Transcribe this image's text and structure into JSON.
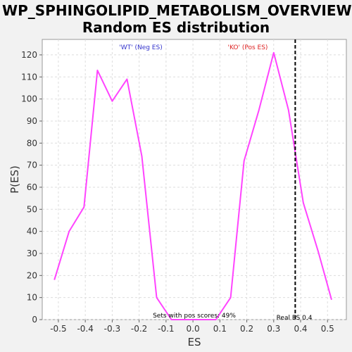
{
  "chart_data": {
    "type": "line",
    "title_line1": "WP_SPHINGOLIPID_METABOLISM_OVERVIEW:",
    "title_line2": "Random ES distribution",
    "xlabel": "ES",
    "ylabel": "P(ES)",
    "xlim": [
      -0.56,
      0.57
    ],
    "ylim": [
      0,
      127
    ],
    "xticks": [
      "-0.5",
      "-0.4",
      "-0.3",
      "-0.2",
      "-0.1",
      "0.0",
      "0.1",
      "0.2",
      "0.3",
      "0.4",
      "0.5"
    ],
    "xtick_values": [
      -0.5,
      -0.4,
      -0.3,
      -0.2,
      -0.1,
      0.0,
      0.1,
      0.2,
      0.3,
      0.4,
      0.5
    ],
    "yticks": [
      0,
      10,
      20,
      30,
      40,
      50,
      60,
      70,
      80,
      90,
      100,
      110,
      120
    ],
    "grid": true,
    "line_color": "#ff44ff",
    "series": [
      {
        "x": [
          -0.515,
          -0.46,
          -0.405,
          -0.355,
          -0.3,
          -0.245,
          -0.19,
          -0.135,
          -0.08,
          -0.025,
          0.03,
          0.085,
          0.14,
          0.19,
          0.245,
          0.3,
          0.355,
          0.41,
          0.465,
          0.515
        ],
        "values": [
          18,
          40,
          51,
          113,
          99,
          109,
          74,
          10,
          0,
          0,
          0,
          0,
          10,
          72,
          95,
          121,
          95,
          53,
          31,
          9
        ]
      }
    ],
    "annotations": {
      "neg_label": "'WT' (Neg ES)",
      "neg_color": "#3333cc",
      "pos_label": "'KO' (Pos ES)",
      "pos_color": "#dd2222",
      "sets_text": "Sets with pos scores: 49%",
      "real_es_text": "Real ES 0.4",
      "real_es_value": 0.38
    }
  }
}
